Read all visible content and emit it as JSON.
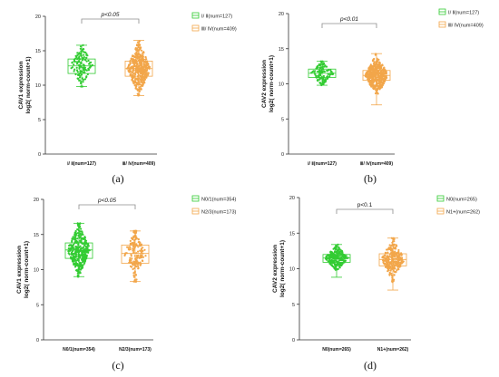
{
  "colors": {
    "green": "#33cc33",
    "orange": "#f2a64a",
    "axis": "#333333",
    "bracket": "#8c8c8c"
  },
  "chart_data": [
    {
      "type": "box",
      "panel_label": "(a)",
      "ylabel_line1": "CAV1 expression",
      "ylabel_line2": "log2( norm-count+1)",
      "yticks": [
        0,
        5,
        10,
        15,
        20
      ],
      "ylim": [
        0,
        20
      ],
      "significance": "p<0.05",
      "categories": [
        "Ⅰ/ Ⅱ(num=127)",
        "Ⅲ/ Ⅳ(num=409)"
      ],
      "series": [
        {
          "name": "Ⅰ/ Ⅱ(num=127)",
          "n": 127,
          "min": 9.8,
          "q1": 11.7,
          "median": 12.8,
          "q3": 13.8,
          "max": 15.8
        },
        {
          "name": "Ⅲ/ Ⅳ(num=409)",
          "n": 409,
          "min": 8.5,
          "q1": 11.3,
          "median": 12.4,
          "q3": 13.5,
          "max": 16.5
        }
      ],
      "legend_position": "top-right"
    },
    {
      "type": "box",
      "panel_label": "(b)",
      "ylabel_line1": "CAV2 expression",
      "ylabel_line2": "log2( norm-count+1)",
      "yticks": [
        0,
        5,
        10,
        15,
        20
      ],
      "ylim": [
        0,
        20
      ],
      "significance": "p<0.01",
      "categories": [
        "Ⅰ/ Ⅱ(num=127)",
        "Ⅲ/ Ⅳ(num=409)"
      ],
      "series": [
        {
          "name": "Ⅰ/ Ⅱ(num=127)",
          "n": 127,
          "min": 9.8,
          "q1": 10.9,
          "median": 11.5,
          "q3": 12.1,
          "max": 13.2
        },
        {
          "name": "Ⅲ/ Ⅳ(num=409)",
          "n": 409,
          "min": 7.0,
          "q1": 10.5,
          "median": 11.2,
          "q3": 11.9,
          "max": 14.3
        }
      ],
      "legend_position": "top-right"
    },
    {
      "type": "box",
      "panel_label": "(c)",
      "ylabel_line1": "CAV1 expression",
      "ylabel_line2": "log2( norm-count+1)",
      "yticks": [
        0,
        5,
        10,
        15,
        20
      ],
      "ylim": [
        0,
        20
      ],
      "significance": "p<0.05",
      "categories": [
        "N0/1(num=354)",
        "N2/3(num=173)"
      ],
      "series": [
        {
          "name": "N0/1(num=354)",
          "n": 354,
          "min": 9.0,
          "q1": 11.6,
          "median": 12.8,
          "q3": 13.8,
          "max": 16.6
        },
        {
          "name": "N2/3(num=173)",
          "n": 173,
          "min": 8.3,
          "q1": 10.9,
          "median": 12.3,
          "q3": 13.5,
          "max": 15.5
        }
      ],
      "legend_position": "top-right"
    },
    {
      "type": "box",
      "panel_label": "(d)",
      "ylabel_line1": "CAV2 expression",
      "ylabel_line2": "log2( norm-count+1)",
      "yticks": [
        0,
        5,
        10,
        15,
        20
      ],
      "ylim": [
        0,
        20
      ],
      "significance": "p<0.1",
      "categories": [
        "N0(num=265)",
        "N1+(num=262)"
      ],
      "series": [
        {
          "name": "N0(num=265)",
          "n": 265,
          "min": 8.8,
          "q1": 10.9,
          "median": 11.5,
          "q3": 12.0,
          "max": 13.4
        },
        {
          "name": "N1+(num=262)",
          "n": 262,
          "min": 7.0,
          "q1": 10.4,
          "median": 11.3,
          "q3": 12.1,
          "max": 14.3
        }
      ],
      "legend_position": "top-right"
    }
  ]
}
